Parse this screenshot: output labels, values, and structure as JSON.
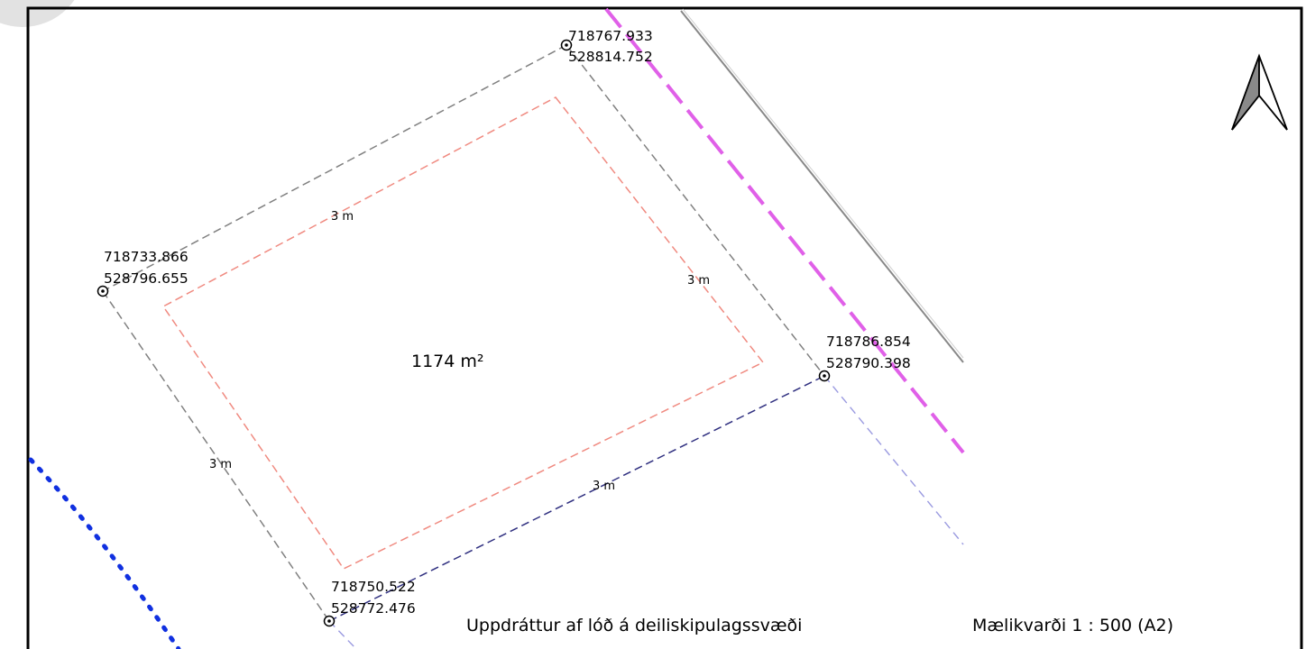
{
  "map": {
    "plot_area": "1174 m²",
    "corners": [
      {
        "x": "718767.933",
        "y": "528814.752"
      },
      {
        "x": "718733.866",
        "y": "528796.655"
      },
      {
        "x": "718786.854",
        "y": "528790.398"
      },
      {
        "x": "718750.522",
        "y": "528772.476"
      }
    ],
    "setbacks": [
      "3 m",
      "3 m",
      "3 m",
      "3 m"
    ],
    "title": "Uppdráttur af lóð á deiliskipulagssvæði",
    "scale": "Mælikvarði 1 : 500 (A2)",
    "north_arrow_icon": "north-arrow-icon",
    "colors": {
      "plot_boundary": "#808080",
      "building_limit": "#f08a80",
      "road_line": "#e060e8",
      "adjacent_boundary": "#9a9ae0",
      "plot_edge_blue": "#303080",
      "dotted_line": "#1030e0"
    }
  }
}
